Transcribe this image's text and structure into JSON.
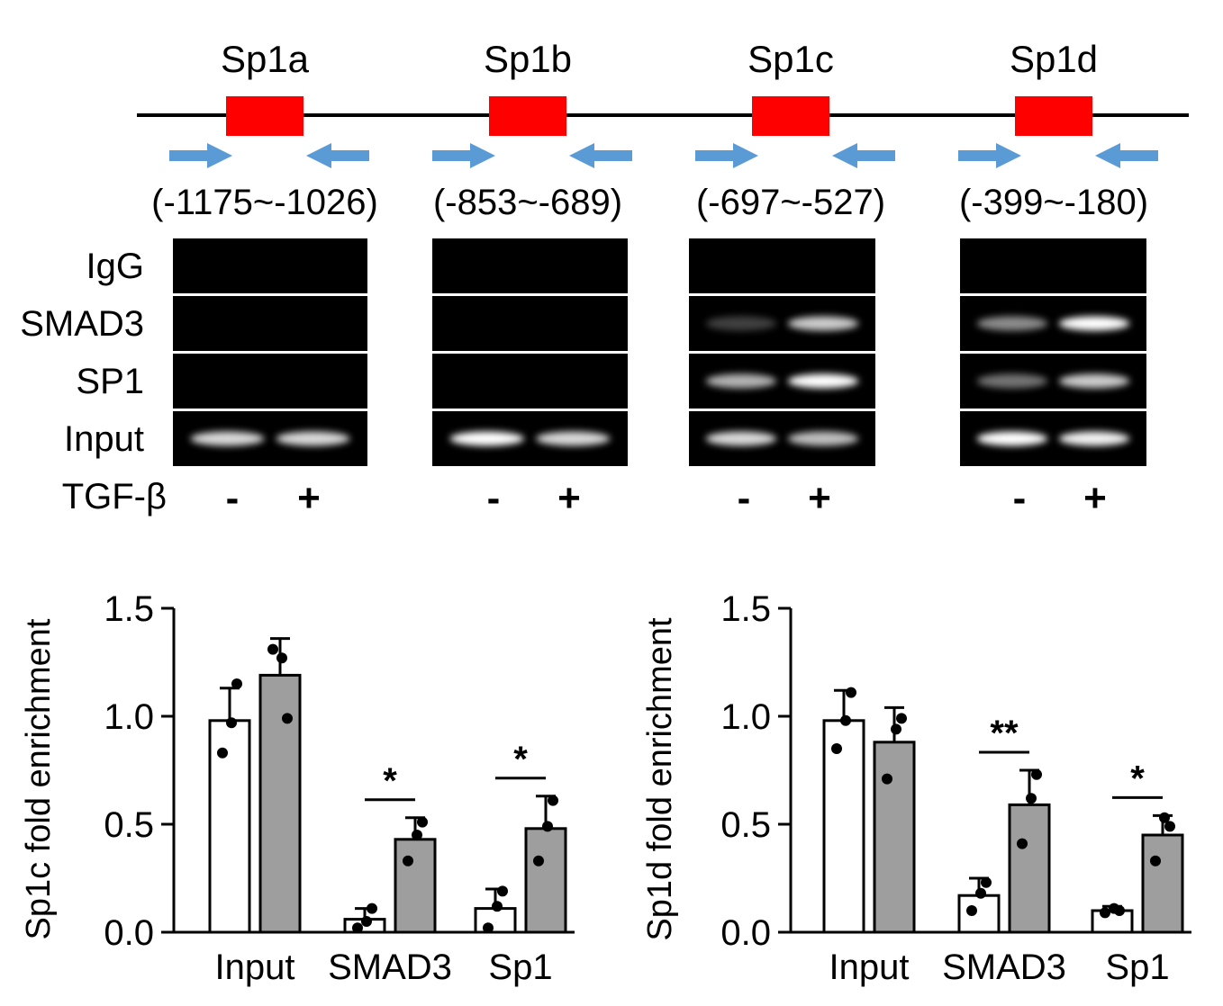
{
  "promoter": {
    "sites": [
      {
        "name": "Sp1a",
        "range": "(-1175~-1026)"
      },
      {
        "name": "Sp1b",
        "range": "(-853~-689)"
      },
      {
        "name": "Sp1c",
        "range": "(-697~-527)"
      },
      {
        "name": "Sp1d",
        "range": "(-399~-180)"
      }
    ],
    "site_color": "#ff0000",
    "primer_color": "#5b9bd5"
  },
  "gel": {
    "row_labels": [
      "IgG",
      "SMAD3",
      "SP1",
      "Input"
    ],
    "treatment_label": "TGF-β",
    "treatment_marks": [
      "-",
      "+"
    ],
    "band_intensity": [
      [
        [
          0,
          0
        ],
        [
          0,
          0
        ],
        [
          0,
          0
        ],
        [
          0.85,
          0.85
        ]
      ],
      [
        [
          0,
          0
        ],
        [
          0,
          0
        ],
        [
          0,
          0
        ],
        [
          1,
          0.85
        ]
      ],
      [
        [
          0,
          0
        ],
        [
          0.25,
          0.8
        ],
        [
          0.7,
          1
        ],
        [
          0.85,
          0.75
        ]
      ],
      [
        [
          0,
          0
        ],
        [
          0.55,
          1
        ],
        [
          0.45,
          0.8
        ],
        [
          1,
          0.95
        ]
      ]
    ]
  },
  "chart_data": [
    {
      "type": "bar",
      "ylabel": "Sp1c fold enrichment",
      "ylim": [
        0,
        1.5
      ],
      "yticks": [
        "0.0",
        "0.5",
        "1.0",
        "1.5"
      ],
      "categories": [
        "Input",
        "SMAD3",
        "Sp1"
      ],
      "series": [
        {
          "color": "#ffffff",
          "values": [
            0.98,
            0.06,
            0.11
          ],
          "errors": [
            0.15,
            0.05,
            0.09
          ],
          "points": [
            [
              0.83,
              1.15,
              0.97
            ],
            [
              0.02,
              0.11,
              0.05
            ],
            [
              0.02,
              0.19,
              0.12
            ]
          ]
        },
        {
          "color": "#9e9e9e",
          "values": [
            1.19,
            0.43,
            0.48
          ],
          "errors": [
            0.17,
            0.1,
            0.15
          ],
          "points": [
            [
              1.31,
              0.99,
              1.27
            ],
            [
              0.33,
              0.51,
              0.45
            ],
            [
              0.33,
              0.61,
              0.49
            ]
          ]
        }
      ],
      "significance": [
        "",
        "*",
        "*"
      ]
    },
    {
      "type": "bar",
      "ylabel": "Sp1d fold enrichment",
      "ylim": [
        0,
        1.5
      ],
      "yticks": [
        "0.0",
        "0.5",
        "1.0",
        "1.5"
      ],
      "categories": [
        "Input",
        "SMAD3",
        "Sp1"
      ],
      "series": [
        {
          "color": "#ffffff",
          "values": [
            0.98,
            0.17,
            0.1
          ],
          "errors": [
            0.14,
            0.08,
            0.02
          ],
          "points": [
            [
              0.85,
              1.11,
              0.98
            ],
            [
              0.1,
              0.23,
              0.18
            ],
            [
              0.09,
              0.1,
              0.11
            ]
          ]
        },
        {
          "color": "#9e9e9e",
          "values": [
            0.88,
            0.59,
            0.45
          ],
          "errors": [
            0.16,
            0.16,
            0.09
          ],
          "points": [
            [
              0.71,
              0.99,
              0.94
            ],
            [
              0.41,
              0.73,
              0.62
            ],
            [
              0.33,
              0.49,
              0.53
            ]
          ]
        }
      ],
      "significance": [
        "",
        "**",
        "*"
      ]
    }
  ]
}
